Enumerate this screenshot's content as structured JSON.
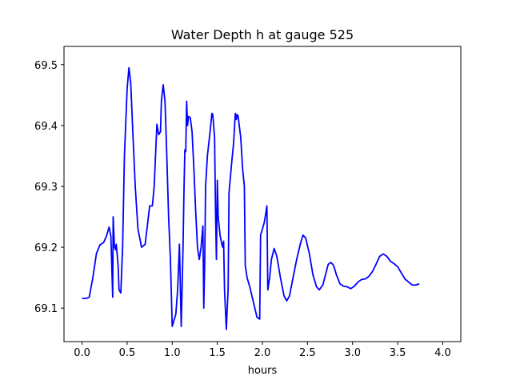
{
  "chart_data": {
    "type": "line",
    "title": "Water Depth h at gauge 525",
    "xlabel": "hours",
    "ylabel": "",
    "xlim": [
      -0.2,
      4.2
    ],
    "ylim": [
      69.045,
      69.53
    ],
    "xticks": [
      0.0,
      0.5,
      1.0,
      1.5,
      2.0,
      2.5,
      3.0,
      3.5,
      4.0
    ],
    "xtick_labels": [
      "0.0",
      "0.5",
      "1.0",
      "1.5",
      "2.0",
      "2.5",
      "3.0",
      "3.5",
      "4.0"
    ],
    "yticks": [
      69.1,
      69.2,
      69.3,
      69.4,
      69.5
    ],
    "ytick_labels": [
      "69.1",
      "69.2",
      "69.3",
      "69.4",
      "69.5"
    ],
    "grid": false,
    "series": [
      {
        "color": "#0000ff",
        "points": [
          [
            0.0,
            69.116
          ],
          [
            0.05,
            69.116
          ],
          [
            0.08,
            69.118
          ],
          [
            0.12,
            69.15
          ],
          [
            0.16,
            69.19
          ],
          [
            0.2,
            69.204
          ],
          [
            0.24,
            69.208
          ],
          [
            0.27,
            69.218
          ],
          [
            0.3,
            69.233
          ],
          [
            0.32,
            69.218
          ],
          [
            0.34,
            69.118
          ],
          [
            0.345,
            69.25
          ],
          [
            0.36,
            69.2
          ],
          [
            0.37,
            69.196
          ],
          [
            0.38,
            69.205
          ],
          [
            0.4,
            69.17
          ],
          [
            0.41,
            69.13
          ],
          [
            0.43,
            69.125
          ],
          [
            0.45,
            69.2
          ],
          [
            0.47,
            69.35
          ],
          [
            0.5,
            69.46
          ],
          [
            0.52,
            69.495
          ],
          [
            0.54,
            69.47
          ],
          [
            0.56,
            69.4
          ],
          [
            0.59,
            69.3
          ],
          [
            0.62,
            69.23
          ],
          [
            0.66,
            69.2
          ],
          [
            0.7,
            69.205
          ],
          [
            0.72,
            69.23
          ],
          [
            0.75,
            69.268
          ],
          [
            0.78,
            69.268
          ],
          [
            0.8,
            69.3
          ],
          [
            0.83,
            69.402
          ],
          [
            0.85,
            69.385
          ],
          [
            0.87,
            69.39
          ],
          [
            0.88,
            69.44
          ],
          [
            0.9,
            69.467
          ],
          [
            0.92,
            69.44
          ],
          [
            0.94,
            69.35
          ],
          [
            0.96,
            69.25
          ],
          [
            0.98,
            69.18
          ],
          [
            1.0,
            69.07
          ],
          [
            1.02,
            69.08
          ],
          [
            1.04,
            69.09
          ],
          [
            1.06,
            69.13
          ],
          [
            1.08,
            69.205
          ],
          [
            1.1,
            69.07
          ],
          [
            1.12,
            69.2
          ],
          [
            1.13,
            69.29
          ],
          [
            1.14,
            69.36
          ],
          [
            1.15,
            69.357
          ],
          [
            1.16,
            69.44
          ],
          [
            1.17,
            69.4
          ],
          [
            1.18,
            69.415
          ],
          [
            1.2,
            69.413
          ],
          [
            1.22,
            69.39
          ],
          [
            1.24,
            69.33
          ],
          [
            1.26,
            69.26
          ],
          [
            1.28,
            69.2
          ],
          [
            1.3,
            69.18
          ],
          [
            1.32,
            69.2
          ],
          [
            1.34,
            69.235
          ],
          [
            1.35,
            69.1
          ],
          [
            1.36,
            69.17
          ],
          [
            1.37,
            69.3
          ],
          [
            1.39,
            69.35
          ],
          [
            1.42,
            69.39
          ],
          [
            1.44,
            69.42
          ],
          [
            1.45,
            69.418
          ],
          [
            1.47,
            69.38
          ],
          [
            1.48,
            69.26
          ],
          [
            1.49,
            69.18
          ],
          [
            1.5,
            69.31
          ],
          [
            1.51,
            69.25
          ],
          [
            1.53,
            69.22
          ],
          [
            1.55,
            69.205
          ],
          [
            1.56,
            69.2
          ],
          [
            1.57,
            69.21
          ],
          [
            1.58,
            69.13
          ],
          [
            1.6,
            69.065
          ],
          [
            1.61,
            69.1
          ],
          [
            1.62,
            69.13
          ],
          [
            1.63,
            69.29
          ],
          [
            1.66,
            69.34
          ],
          [
            1.68,
            69.37
          ],
          [
            1.7,
            69.42
          ],
          [
            1.71,
            69.41
          ],
          [
            1.72,
            69.418
          ],
          [
            1.73,
            69.416
          ],
          [
            1.76,
            69.38
          ],
          [
            1.78,
            69.33
          ],
          [
            1.8,
            69.3
          ],
          [
            1.81,
            69.17
          ],
          [
            1.83,
            69.15
          ],
          [
            1.86,
            69.135
          ],
          [
            1.9,
            69.11
          ],
          [
            1.94,
            69.085
          ],
          [
            1.97,
            69.082
          ],
          [
            1.98,
            69.22
          ],
          [
            2.0,
            69.23
          ],
          [
            2.02,
            69.24
          ],
          [
            2.04,
            69.258
          ],
          [
            2.05,
            69.268
          ],
          [
            2.06,
            69.13
          ],
          [
            2.08,
            69.15
          ],
          [
            2.1,
            69.18
          ],
          [
            2.13,
            69.198
          ],
          [
            2.16,
            69.185
          ],
          [
            2.2,
            69.15
          ],
          [
            2.24,
            69.12
          ],
          [
            2.27,
            69.112
          ],
          [
            2.3,
            69.12
          ],
          [
            2.34,
            69.15
          ],
          [
            2.38,
            69.18
          ],
          [
            2.42,
            69.205
          ],
          [
            2.45,
            69.22
          ],
          [
            2.48,
            69.215
          ],
          [
            2.52,
            69.19
          ],
          [
            2.56,
            69.155
          ],
          [
            2.6,
            69.135
          ],
          [
            2.63,
            69.13
          ],
          [
            2.67,
            69.138
          ],
          [
            2.7,
            69.155
          ],
          [
            2.73,
            69.172
          ],
          [
            2.76,
            69.175
          ],
          [
            2.79,
            69.17
          ],
          [
            2.82,
            69.155
          ],
          [
            2.86,
            69.14
          ],
          [
            2.9,
            69.136
          ],
          [
            2.94,
            69.135
          ],
          [
            2.98,
            69.132
          ],
          [
            3.02,
            69.136
          ],
          [
            3.06,
            69.143
          ],
          [
            3.1,
            69.147
          ],
          [
            3.14,
            69.148
          ],
          [
            3.18,
            69.152
          ],
          [
            3.22,
            69.16
          ],
          [
            3.26,
            69.172
          ],
          [
            3.3,
            69.185
          ],
          [
            3.34,
            69.189
          ],
          [
            3.38,
            69.185
          ],
          [
            3.42,
            69.177
          ],
          [
            3.46,
            69.173
          ],
          [
            3.5,
            69.168
          ],
          [
            3.54,
            69.158
          ],
          [
            3.58,
            69.148
          ],
          [
            3.62,
            69.143
          ],
          [
            3.66,
            69.138
          ],
          [
            3.7,
            69.138
          ],
          [
            3.74,
            69.14
          ]
        ]
      }
    ]
  }
}
